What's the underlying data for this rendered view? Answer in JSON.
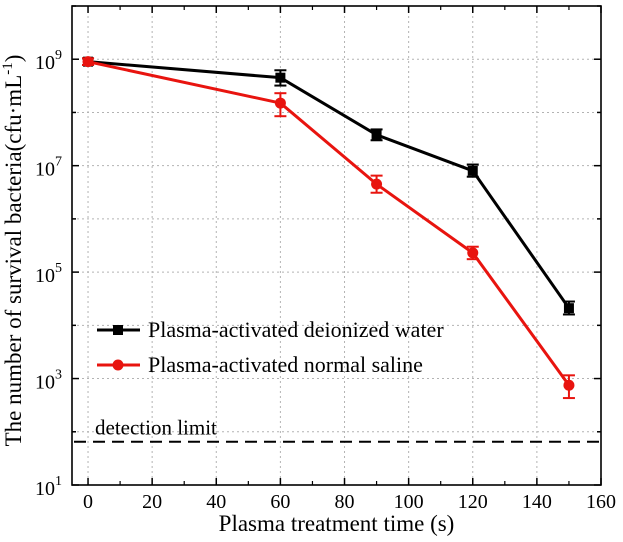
{
  "chart_data": {
    "type": "line",
    "title": "",
    "xlabel": "Plasma treatment time (s)",
    "ylabel": "The number of survival bacteria(cfu·mL",
    "ylabel_superscript": "-1",
    "ylabel_close": ")",
    "xlim": [
      -5,
      160
    ],
    "ylim": [
      10,
      10000000000
    ],
    "y_scale": "log",
    "grid": true,
    "legend_position": "lower-left",
    "x_ticks": [
      0,
      20,
      40,
      60,
      80,
      100,
      120,
      140,
      160
    ],
    "x_tick_labels": [
      "0",
      "20",
      "40",
      "60",
      "80",
      "100",
      "120",
      "140",
      "160"
    ],
    "y_ticks": [
      {
        "value": 10,
        "base": "10",
        "exp": "1"
      },
      {
        "value": 1000,
        "base": "10",
        "exp": "3"
      },
      {
        "value": 100000,
        "base": "10",
        "exp": "5"
      },
      {
        "value": 10000000,
        "base": "10",
        "exp": "7"
      },
      {
        "value": 1000000000,
        "base": "10",
        "exp": "9"
      }
    ],
    "series": [
      {
        "name": "Plasma-activated deionized water",
        "color": "#000000",
        "marker": "square",
        "x": [
          0,
          60,
          90,
          120,
          150
        ],
        "y": [
          900000000,
          450000000,
          38000000,
          8000000,
          21000
        ],
        "err_low": [
          780000000,
          320000000,
          30000000,
          6200000,
          16000
        ],
        "err_high": [
          1040000000,
          620000000,
          48000000,
          10500000,
          28000
        ]
      },
      {
        "name": "Plasma-activated normal saline",
        "color": "#e8140f",
        "marker": "circle",
        "x": [
          0,
          60,
          90,
          120,
          150
        ],
        "y": [
          900000000,
          150000000,
          4500000,
          230000,
          750
        ],
        "err_low": [
          780000000,
          85000000,
          3100000,
          175000,
          430
        ],
        "err_high": [
          1040000000,
          230000000,
          6500000,
          300000,
          1150
        ]
      }
    ],
    "reference_line": {
      "label": "detection limit",
      "y": 65,
      "style": "dashed"
    }
  }
}
